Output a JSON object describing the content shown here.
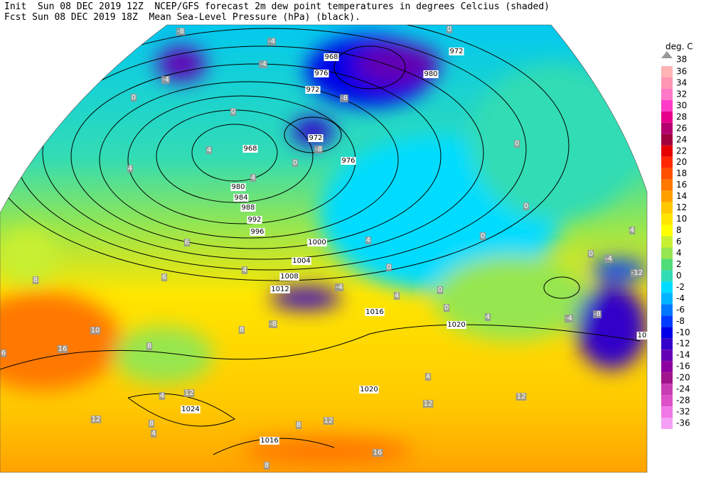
{
  "header": {
    "line1": "Init  Sun 08 DEC 2019 12Z  NCEP/GFS forecast 2m dew point temperatures in degrees Celcius (shaded)",
    "line2": "Fcst Sun 08 DEC 2019 18Z  Mean Sea-Level Pressure (hPa) (black)."
  },
  "colorbar": {
    "unit": "deg. C",
    "top_label": 38,
    "levels": [
      36,
      34,
      32,
      30,
      28,
      26,
      24,
      22,
      20,
      18,
      16,
      14,
      12,
      10,
      8,
      6,
      4,
      2,
      0,
      -2,
      -4,
      -6,
      -8,
      -10,
      -12,
      -14,
      -16,
      -20,
      -24,
      -28,
      -32,
      -36
    ],
    "colors": [
      "#ffb4b4",
      "#ff96b4",
      "#ff78c8",
      "#ff3cc8",
      "#e6008c",
      "#b4006e",
      "#a0003c",
      "#e60000",
      "#ff2800",
      "#ff5000",
      "#ff7800",
      "#ffa000",
      "#ffc800",
      "#ffe600",
      "#ffff00",
      "#c8f032",
      "#96e650",
      "#50dc78",
      "#32dcb4",
      "#00dcff",
      "#00b4ff",
      "#0078ff",
      "#003cff",
      "#0000e6",
      "#3200c8",
      "#6400b4",
      "#8c00a0",
      "#a0148c",
      "#c83cb4",
      "#dc50c8",
      "#f078e6",
      "#f5a0f5"
    ]
  },
  "isobar_labels": [
    968,
    976,
    972,
    968,
    972,
    976,
    980,
    984,
    988,
    992,
    996,
    1000,
    1004,
    1008,
    1012,
    1016,
    1020,
    1020,
    1024,
    1016,
    972,
    980,
    10
  ],
  "dewpoint_labels": [
    -8,
    -4,
    0,
    -4,
    -4,
    0,
    0,
    -8,
    4,
    4,
    0,
    4,
    0,
    0,
    0,
    4,
    0,
    -4,
    4,
    6,
    8,
    6,
    4,
    0,
    0,
    0,
    4,
    -4,
    -8,
    -4,
    4,
    10,
    16,
    6,
    8,
    8,
    -8,
    12,
    4,
    12,
    8,
    4,
    12,
    8,
    12,
    4,
    12,
    16,
    8,
    -12,
    -8
  ]
}
